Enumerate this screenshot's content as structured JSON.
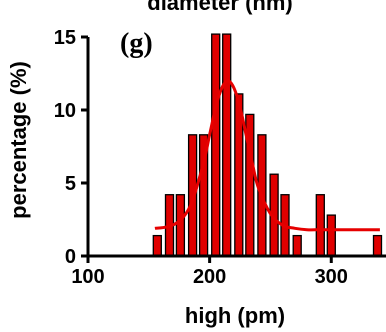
{
  "chart_data": {
    "type": "bar",
    "top_title": "diameter (nm)",
    "panel_label": "(g)",
    "xlabel": "high (pm)",
    "ylabel": "percentage (%)",
    "xlim": [
      100,
      345
    ],
    "ylim": [
      0,
      15
    ],
    "x_ticks": [
      100,
      200,
      300
    ],
    "y_ticks": [
      0,
      5,
      10,
      15
    ],
    "bar_width": 8,
    "bar_color": "#e00000",
    "curve_color": "#e60000",
    "x": [
      157,
      167,
      176,
      186,
      195,
      205,
      214,
      224,
      233,
      243,
      253,
      262,
      272,
      281,
      291,
      300,
      338
    ],
    "values": [
      1.4,
      4.2,
      4.2,
      8.3,
      8.3,
      15.2,
      15.2,
      11.1,
      9.7,
      8.3,
      5.6,
      4.2,
      1.4,
      0,
      4.2,
      2.8,
      1.4
    ],
    "fit_curve": {
      "x": [
        155,
        165,
        175,
        185,
        195,
        200,
        205,
        210,
        215,
        220,
        225,
        230,
        235,
        240,
        250,
        260,
        270,
        280,
        290,
        300,
        310,
        320,
        330,
        340
      ],
      "y": [
        1.9,
        2.0,
        2.4,
        3.6,
        6.4,
        8.3,
        10.2,
        11.5,
        12.0,
        11.5,
        10.2,
        8.3,
        6.4,
        4.7,
        2.9,
        2.1,
        1.9,
        1.8,
        1.8,
        1.8,
        1.8,
        1.8,
        1.8,
        1.8
      ]
    }
  }
}
